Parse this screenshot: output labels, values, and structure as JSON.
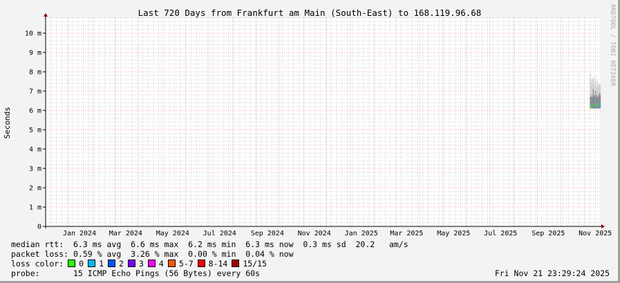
{
  "chart_data": {
    "type": "line",
    "title": "Last 720 Days from Frankfurt am Main (South-East) to 168.119.96.68",
    "ylabel": "Seconds",
    "xlabel": "",
    "watermark": "RRDTOOL / TOBI OETIKER",
    "ylim": [
      0,
      10.8
    ],
    "xlim": [
      "2023-12-01",
      "2025-11-21"
    ],
    "y_ticks": [
      "0",
      "1 m",
      "2 m",
      "3 m",
      "4 m",
      "5 m",
      "6 m",
      "7 m",
      "8 m",
      "9 m",
      "10 m"
    ],
    "x_ticks": [
      "Jan 2024",
      "Mar 2024",
      "May 2024",
      "Jul 2024",
      "Sep 2024",
      "Nov 2024",
      "Jan 2025",
      "Mar 2025",
      "May 2025",
      "Jul 2025",
      "Sep 2025",
      "Nov 2025"
    ],
    "grid": true,
    "series": [
      {
        "x": [
          "2025-11-08",
          "2025-11-09",
          "2025-11-10",
          "2025-11-11",
          "2025-11-12",
          "2025-11-13",
          "2025-11-14",
          "2025-11-15",
          "2025-11-16",
          "2025-11-17",
          "2025-11-18",
          "2025-11-19",
          "2025-11-20",
          "2025-11-21"
        ],
        "median_ms": [
          6.2,
          6.2,
          6.3,
          6.2,
          6.6,
          6.3,
          6.2,
          6.5,
          6.3,
          6.2,
          6.2,
          6.3,
          6.4,
          6.3
        ],
        "smoke_max_ms": [
          7.9,
          7.6,
          7.4,
          7.7,
          7.6,
          7.3,
          7.8,
          7.5,
          7.2,
          7.6,
          7.4,
          7.3,
          7.4,
          7.3
        ],
        "smoke_min_ms": [
          6.1,
          6.1,
          6.1,
          6.1,
          6.1,
          6.1,
          6.1,
          6.1,
          6.1,
          6.1,
          6.1,
          6.1,
          6.1,
          6.1
        ],
        "loss_color": [
          "#26ff00",
          "#26ff00",
          "#00b8ff",
          "#26ff00",
          "#00b8ff",
          "#26ff00",
          "#00b8ff",
          "#00b8ff",
          "#26ff00",
          "#00b8ff",
          "#00b8ff",
          "#26ff00",
          "#00b8ff",
          "#00b8ff"
        ]
      }
    ]
  },
  "legend": {
    "median_rtt": "median rtt:  6.3 ms avg  6.6 ms max  6.2 ms min  6.3 ms now  0.3 ms sd  20.2   am/s",
    "packet_loss": "packet loss: 0.59 % avg  3.26 % max  0.00 % min  0.04 % now",
    "loss_color_label": "loss color:",
    "loss_colors": [
      {
        "label": "0",
        "color": "#26ff00"
      },
      {
        "label": "1",
        "color": "#00b8ff"
      },
      {
        "label": "2",
        "color": "#0059ff"
      },
      {
        "label": "3",
        "color": "#7e00ff"
      },
      {
        "label": "4",
        "color": "#ff00ff"
      },
      {
        "label": "5-7",
        "color": "#ff5500"
      },
      {
        "label": "8-14",
        "color": "#ff0000"
      },
      {
        "label": "15/15",
        "color": "#a10000"
      }
    ],
    "probe": "probe:       15 ICMP Echo Pings (56 Bytes) every 60s",
    "timestamp": "Fri Nov 21 23:29:24 2025"
  }
}
